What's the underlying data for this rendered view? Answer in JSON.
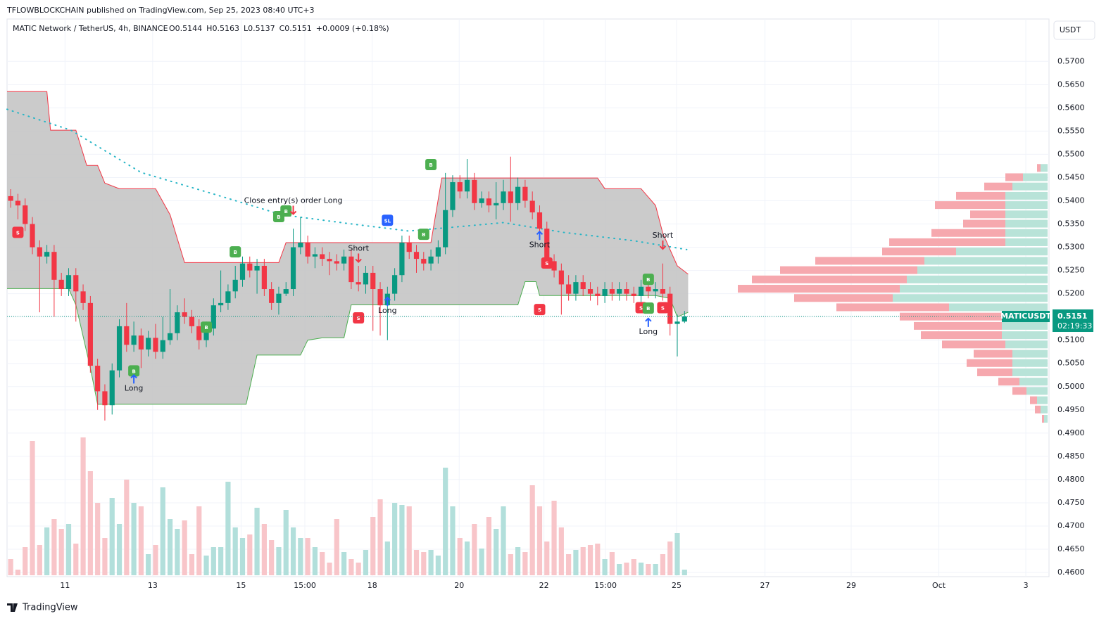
{
  "header": {
    "publisher": "TFLOWBLOCKCHAIN published on TradingView.com, Sep 25, 2023 08:40 UTC+3",
    "symbol": "MATIC Network / TetherUS, 4h, BINANCE",
    "legend": [
      {
        "key": "O",
        "value": "0.5144"
      },
      {
        "key": "H",
        "value": "0.5163"
      },
      {
        "key": "L",
        "value": "0.5137"
      },
      {
        "key": "C",
        "value": "0.5151"
      },
      {
        "key": "",
        "value": "+0.0009 (+0.18%)"
      }
    ],
    "currency": "USDT"
  },
  "footer": {
    "brand": "TradingView"
  },
  "chart_data": {
    "type": "candlestick",
    "up_color": "#089981",
    "down_color": "#f23645",
    "up_volume_color": "#b2dfdb",
    "down_volume_color": "#f8c5c9",
    "xlim": [
      -0.5,
      143.3
    ],
    "ylim": [
      0.4591,
      0.5817
    ],
    "grid": true,
    "xticks": [
      {
        "value": 7.5,
        "label": "11"
      },
      {
        "value": 19.6,
        "label": "13"
      },
      {
        "value": 31.8,
        "label": "15"
      },
      {
        "value": 40.6,
        "label": "15:00"
      },
      {
        "value": 49.9,
        "label": "18"
      },
      {
        "value": 61.9,
        "label": "20"
      },
      {
        "value": 73.6,
        "label": "22"
      },
      {
        "value": 82.1,
        "label": "15:00"
      },
      {
        "value": 91.9,
        "label": "25"
      },
      {
        "value": 104.1,
        "label": "27"
      },
      {
        "value": 116.0,
        "label": "29"
      },
      {
        "value": 128.1,
        "label": "Oct"
      },
      {
        "value": 140.1,
        "label": "3"
      }
    ],
    "yticks": [
      {
        "value": 0.46,
        "label": "0.4600"
      },
      {
        "value": 0.465,
        "label": "0.4650"
      },
      {
        "value": 0.47,
        "label": "0.4700"
      },
      {
        "value": 0.475,
        "label": "0.4750"
      },
      {
        "value": 0.48,
        "label": "0.4800"
      },
      {
        "value": 0.485,
        "label": "0.4850"
      },
      {
        "value": 0.49,
        "label": "0.4900"
      },
      {
        "value": 0.495,
        "label": "0.4950"
      },
      {
        "value": 0.5,
        "label": "0.5000"
      },
      {
        "value": 0.505,
        "label": "0.5050"
      },
      {
        "value": 0.51,
        "label": "0.5100"
      },
      {
        "value": 0.515,
        "label": "0.5150"
      },
      {
        "value": 0.52,
        "label": "0.5200"
      },
      {
        "value": 0.525,
        "label": "0.5250"
      },
      {
        "value": 0.53,
        "label": "0.5300"
      },
      {
        "value": 0.535,
        "label": "0.5350"
      },
      {
        "value": 0.54,
        "label": "0.5400"
      },
      {
        "value": 0.545,
        "label": "0.5450"
      },
      {
        "value": 0.55,
        "label": "0.5500"
      },
      {
        "value": 0.555,
        "label": "0.5550"
      },
      {
        "value": 0.56,
        "label": "0.5600"
      },
      {
        "value": 0.565,
        "label": "0.5650"
      },
      {
        "value": 0.57,
        "label": "0.5700"
      }
    ],
    "open": [
      0.541,
      0.54,
      0.539,
      0.535,
      0.53,
      0.528,
      0.529,
      0.523,
      0.521,
      0.524,
      0.5205,
      0.518,
      0.5045,
      0.499,
      0.496,
      0.5035,
      0.513,
      0.509,
      0.511,
      0.508,
      0.5105,
      0.5075,
      0.51,
      0.5115,
      0.516,
      0.515,
      0.513,
      0.51,
      0.5125,
      0.5175,
      0.518,
      0.5205,
      0.523,
      0.5265,
      0.525,
      0.526,
      0.521,
      0.518,
      0.52,
      0.521,
      0.53,
      0.531,
      0.528,
      0.5285,
      0.5275,
      0.527,
      0.5265,
      0.528,
      0.5225,
      0.522,
      0.5245,
      0.521,
      0.5175,
      0.52,
      0.524,
      0.531,
      0.529,
      0.5275,
      0.5265,
      0.528,
      0.53,
      0.538,
      0.544,
      0.542,
      0.5445,
      0.5395,
      0.5405,
      0.539,
      0.5395,
      0.542,
      0.5395,
      0.543,
      0.54,
      0.5375,
      0.534,
      0.527,
      0.525,
      0.522,
      0.52,
      0.5225,
      0.521,
      0.52,
      0.5195,
      0.521,
      0.52,
      0.521,
      0.52,
      0.5195,
      0.5215,
      0.5205,
      0.521,
      0.52,
      0.5135,
      0.514
    ],
    "high": [
      0.5425,
      0.5415,
      0.5405,
      0.5365,
      0.5315,
      0.5305,
      0.5305,
      0.5245,
      0.5255,
      0.5255,
      0.522,
      0.5195,
      0.506,
      0.5005,
      0.505,
      0.5145,
      0.518,
      0.514,
      0.5125,
      0.512,
      0.5135,
      0.515,
      0.521,
      0.5175,
      0.519,
      0.5165,
      0.5145,
      0.514,
      0.519,
      0.525,
      0.522,
      0.526,
      0.528,
      0.528,
      0.5275,
      0.5275,
      0.5225,
      0.5215,
      0.5225,
      0.534,
      0.5365,
      0.5325,
      0.53,
      0.53,
      0.529,
      0.5285,
      0.5295,
      0.5295,
      0.526,
      0.526,
      0.526,
      0.5225,
      0.5215,
      0.5255,
      0.5325,
      0.5325,
      0.5305,
      0.529,
      0.5295,
      0.5315,
      0.546,
      0.5455,
      0.5455,
      0.549,
      0.546,
      0.542,
      0.542,
      0.544,
      0.5445,
      0.5495,
      0.545,
      0.5445,
      0.542,
      0.539,
      0.5355,
      0.5285,
      0.5265,
      0.524,
      0.524,
      0.524,
      0.5225,
      0.5215,
      0.5225,
      0.5225,
      0.5225,
      0.5225,
      0.5215,
      0.523,
      0.5235,
      0.5225,
      0.5265,
      0.5215,
      0.5155,
      0.5163
    ],
    "low": [
      0.5385,
      0.536,
      0.5335,
      0.5285,
      0.516,
      0.5265,
      0.515,
      0.5195,
      0.5195,
      0.514,
      0.5165,
      0.503,
      0.495,
      0.4927,
      0.494,
      0.502,
      0.5075,
      0.5075,
      0.504,
      0.5065,
      0.506,
      0.506,
      0.509,
      0.51,
      0.5135,
      0.5115,
      0.508,
      0.5085,
      0.511,
      0.516,
      0.5165,
      0.519,
      0.5215,
      0.5235,
      0.52,
      0.5195,
      0.5165,
      0.5155,
      0.5195,
      0.5195,
      0.5285,
      0.5265,
      0.5255,
      0.526,
      0.524,
      0.525,
      0.525,
      0.521,
      0.5205,
      0.52,
      0.512,
      0.511,
      0.51,
      0.5185,
      0.5225,
      0.5275,
      0.5245,
      0.525,
      0.525,
      0.5265,
      0.5285,
      0.5365,
      0.5405,
      0.5405,
      0.538,
      0.5385,
      0.5375,
      0.536,
      0.538,
      0.5355,
      0.538,
      0.5385,
      0.536,
      0.5325,
      0.5255,
      0.5235,
      0.5155,
      0.5185,
      0.5185,
      0.5195,
      0.5185,
      0.5175,
      0.518,
      0.5185,
      0.5185,
      0.5185,
      0.518,
      0.518,
      0.519,
      0.519,
      0.5185,
      0.511,
      0.5065,
      0.5137
    ],
    "close": [
      0.54,
      0.539,
      0.535,
      0.53,
      0.528,
      0.529,
      0.523,
      0.521,
      0.524,
      0.5205,
      0.518,
      0.5045,
      0.499,
      0.496,
      0.5035,
      0.513,
      0.509,
      0.511,
      0.508,
      0.5105,
      0.5075,
      0.51,
      0.5115,
      0.516,
      0.515,
      0.513,
      0.51,
      0.5125,
      0.5175,
      0.518,
      0.5205,
      0.523,
      0.5265,
      0.525,
      0.526,
      0.521,
      0.518,
      0.52,
      0.521,
      0.53,
      0.531,
      0.528,
      0.5285,
      0.5275,
      0.527,
      0.5265,
      0.528,
      0.5225,
      0.522,
      0.5245,
      0.521,
      0.5175,
      0.52,
      0.524,
      0.531,
      0.529,
      0.5275,
      0.5265,
      0.528,
      0.53,
      0.538,
      0.544,
      0.542,
      0.5445,
      0.5395,
      0.5405,
      0.539,
      0.5395,
      0.542,
      0.5395,
      0.543,
      0.54,
      0.5375,
      0.534,
      0.527,
      0.525,
      0.522,
      0.52,
      0.5225,
      0.521,
      0.52,
      0.5195,
      0.521,
      0.52,
      0.521,
      0.52,
      0.5195,
      0.5215,
      0.5205,
      0.521,
      0.52,
      0.5135,
      0.514,
      0.5151
    ],
    "volume": [
      23,
      8,
      40,
      191,
      43,
      68,
      80,
      66,
      73,
      45,
      196,
      148,
      103,
      53,
      110,
      73,
      136,
      103,
      98,
      30,
      43,
      125,
      80,
      66,
      78,
      30,
      98,
      28,
      40,
      40,
      133,
      68,
      53,
      58,
      96,
      73,
      50,
      40,
      93,
      68,
      53,
      53,
      40,
      33,
      18,
      80,
      33,
      23,
      18,
      36,
      83,
      108,
      48,
      103,
      100,
      98,
      36,
      33,
      36,
      28,
      153,
      98,
      53,
      48,
      73,
      38,
      83,
      66,
      98,
      30,
      40,
      33,
      128,
      98,
      48,
      106,
      68,
      30,
      36,
      40,
      43,
      45,
      23,
      33,
      16,
      18,
      23,
      18,
      16,
      16,
      30,
      48,
      60,
      8
    ],
    "upper_band": {
      "color": "#f23645",
      "x": [
        -0.5,
        5,
        5.5,
        9,
        10.5,
        12,
        13,
        15,
        20,
        22,
        24,
        37,
        38,
        58,
        59.5,
        81,
        82,
        87,
        89,
        90,
        92,
        93.5
      ],
      "values": [
        0.5635,
        0.5635,
        0.5552,
        0.5552,
        0.5476,
        0.5476,
        0.5438,
        0.5426,
        0.5426,
        0.537,
        0.5267,
        0.5267,
        0.531,
        0.531,
        0.5449,
        0.5449,
        0.5426,
        0.5426,
        0.539,
        0.533,
        0.526,
        0.5242
      ]
    },
    "lower_band": {
      "color": "#4caf50",
      "x": [
        -0.5,
        8,
        9,
        11,
        12,
        32.5,
        34,
        40,
        41,
        43,
        46,
        47,
        70,
        71,
        72.5,
        73,
        89,
        91,
        92,
        93.5
      ],
      "values": [
        0.5211,
        0.5211,
        0.5176,
        0.504,
        0.4962,
        0.4962,
        0.5068,
        0.5068,
        0.51,
        0.5105,
        0.5105,
        0.5176,
        0.5176,
        0.5226,
        0.5226,
        0.5196,
        0.5196,
        0.519,
        0.515,
        0.516
      ]
    },
    "band_fill": "#c2c2c2",
    "average": {
      "color": "#26b5c6",
      "x": [
        -0.5,
        8.3,
        18,
        27.7,
        37.4,
        47.1,
        54.9,
        61.7,
        68,
        76.3,
        86,
        93.3
      ],
      "values": [
        0.5597,
        0.5552,
        0.5461,
        0.5416,
        0.537,
        0.535,
        0.5335,
        0.5344,
        0.5353,
        0.5332,
        0.5314,
        0.5295
      ]
    },
    "volume_profile": {
      "up_color": "#b8e3d8",
      "down_color": "#f6a8ae",
      "prices": [
        0.547,
        0.545,
        0.543,
        0.541,
        0.539,
        0.537,
        0.535,
        0.533,
        0.531,
        0.529,
        0.527,
        0.525,
        0.523,
        0.521,
        0.519,
        0.517,
        0.515,
        0.513,
        0.511,
        0.509,
        0.507,
        0.505,
        0.503,
        0.501,
        0.499,
        0.497,
        0.495,
        0.493
      ],
      "total": [
        15,
        60,
        90,
        130,
        160,
        110,
        120,
        165,
        225,
        235,
        330,
        380,
        420,
        440,
        360,
        300,
        210,
        190,
        180,
        150,
        105,
        115,
        100,
        70,
        50,
        25,
        18,
        8
      ],
      "up": [
        10,
        35,
        50,
        60,
        60,
        60,
        60,
        60,
        60,
        130,
        175,
        185,
        200,
        210,
        220,
        140,
        60,
        65,
        65,
        60,
        50,
        50,
        50,
        40,
        30,
        15,
        10,
        5
      ]
    },
    "signals": [
      {
        "text": "S",
        "bar": 1,
        "price": 0.5332,
        "color": "#f23645"
      },
      {
        "text": "B",
        "bar": 17,
        "price": 0.5034,
        "color": "#4caf50"
      },
      {
        "text": "B",
        "bar": 27,
        "price": 0.5128,
        "color": "#4caf50"
      },
      {
        "text": "B",
        "bar": 31,
        "price": 0.529,
        "color": "#4caf50"
      },
      {
        "text": "B",
        "bar": 37,
        "price": 0.5366,
        "color": "#4caf50"
      },
      {
        "text": "B",
        "bar": 38,
        "price": 0.5378,
        "color": "#4caf50"
      },
      {
        "text": "S",
        "bar": 48,
        "price": 0.5148,
        "color": "#f23645"
      },
      {
        "text": "SL",
        "bar": 52,
        "price": 0.5358,
        "color": "#2962ff"
      },
      {
        "text": "B",
        "bar": 57,
        "price": 0.5328,
        "color": "#4caf50"
      },
      {
        "text": "B",
        "bar": 58,
        "price": 0.5478,
        "color": "#4caf50"
      },
      {
        "text": "S",
        "bar": 73,
        "price": 0.5166,
        "color": "#f23645"
      },
      {
        "text": "S",
        "bar": 74,
        "price": 0.5266,
        "color": "#f23645"
      },
      {
        "text": "S",
        "bar": 87,
        "price": 0.517,
        "color": "#f23645"
      },
      {
        "text": "B",
        "bar": 88,
        "price": 0.5231,
        "color": "#4caf50"
      },
      {
        "text": "B",
        "bar": 88,
        "price": 0.5169,
        "color": "#4caf50"
      },
      {
        "text": "S",
        "bar": 90,
        "price": 0.517,
        "color": "#f23645"
      }
    ],
    "annotations": [
      {
        "text": "Long",
        "bar": 17,
        "price": 0.4996
      },
      {
        "text": "Close entry(s) order Long",
        "bar": 39,
        "price": 0.54
      },
      {
        "text": "Short",
        "bar": 48,
        "price": 0.5297
      },
      {
        "text": "Long",
        "bar": 52,
        "price": 0.5163
      },
      {
        "text": "Short",
        "bar": 73,
        "price": 0.5305
      },
      {
        "text": "Long",
        "bar": 88,
        "price": 0.5118
      },
      {
        "text": "Short",
        "bar": 90,
        "price": 0.5325
      }
    ],
    "price_label": {
      "symbol": "MATICUSDT",
      "price": 0.5151,
      "countdown": "02:19:33",
      "color": "#089981"
    }
  }
}
